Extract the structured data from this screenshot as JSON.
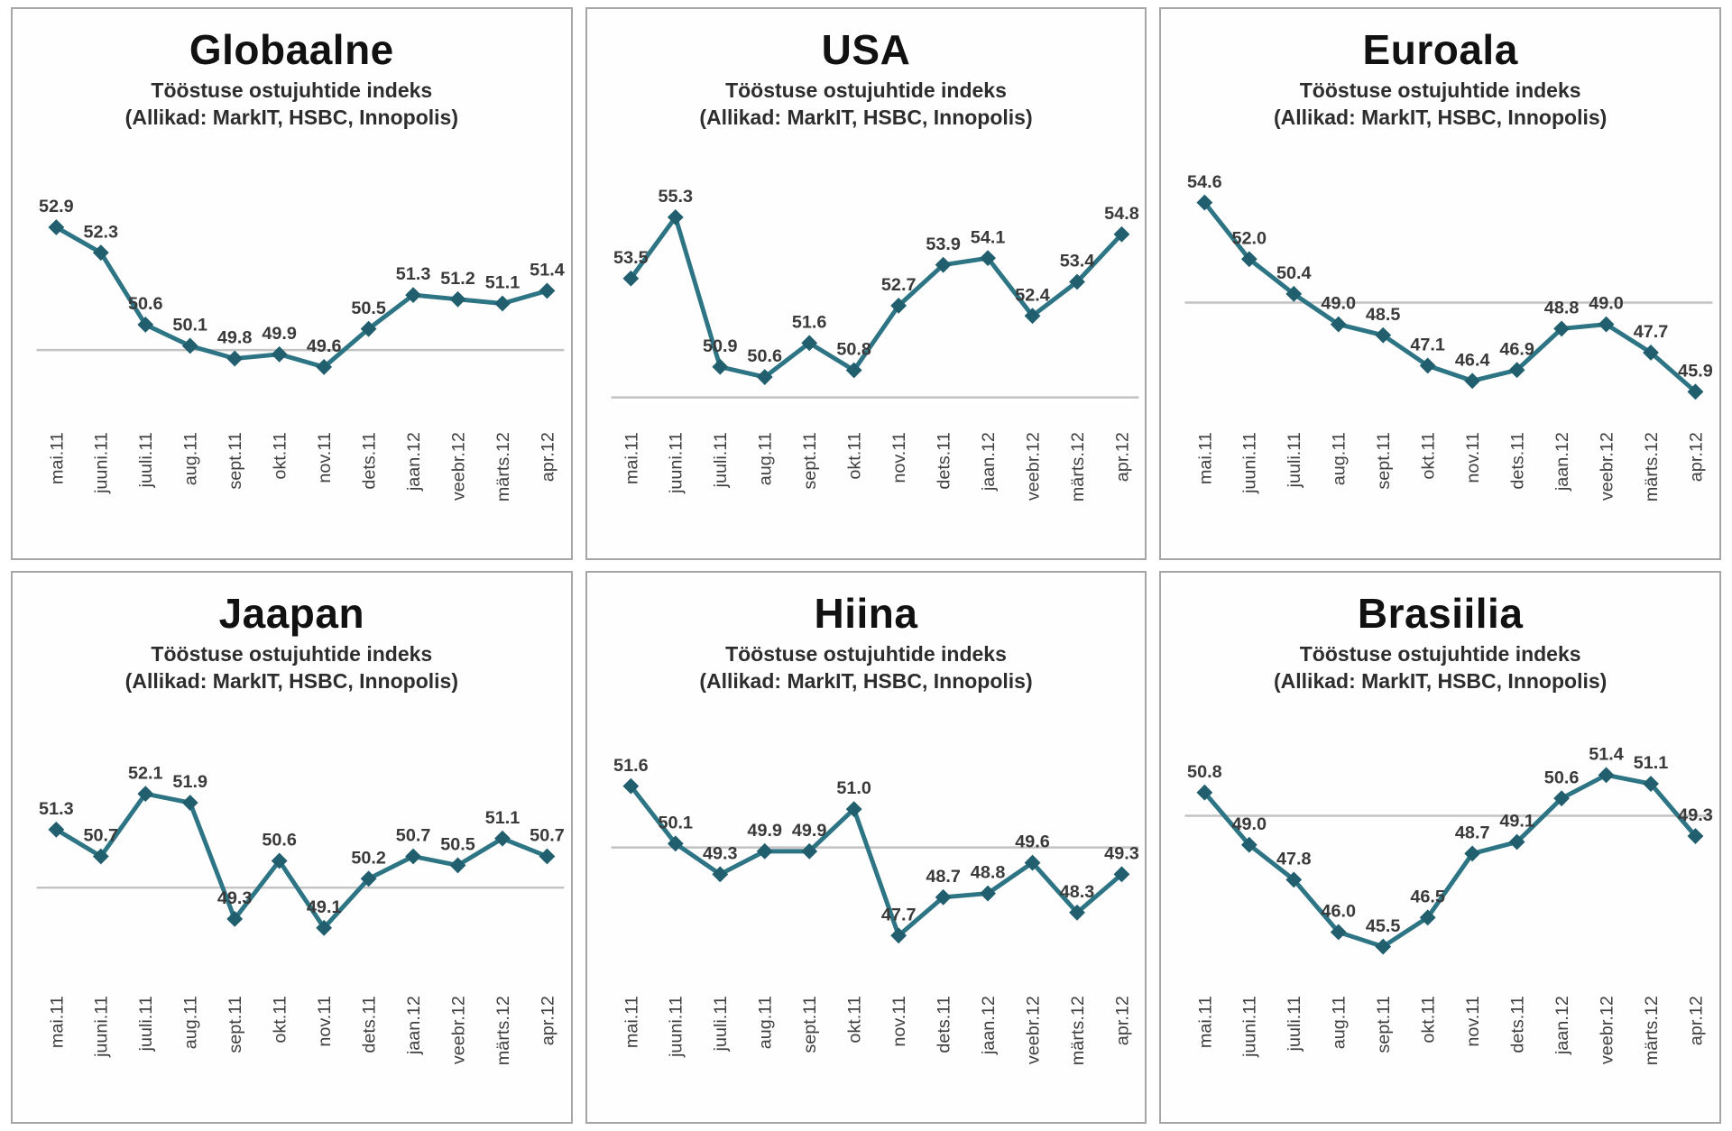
{
  "colors": {
    "line": "#2d7584",
    "marker": "#215f6e",
    "reference_line": "#c3c3c3",
    "value_label": "#3a3a3a",
    "axis_label": "#3f3f3f",
    "panel_border": "#a6a6a6",
    "title": "#111111"
  },
  "chart_data": [
    {
      "type": "line",
      "title": "Globaalne",
      "subtitle": "Tööstuse ostujuhtide indeks",
      "source_note": "(Allikad: MarkIT, HSBC, Innopolis)",
      "categories": [
        "mai.11",
        "juuni.11",
        "juuli.11",
        "aug.11",
        "sept.11",
        "okt.11",
        "nov.11",
        "dets.11",
        "jaan.12",
        "veebr.12",
        "märts.12",
        "apr.12"
      ],
      "values": [
        52.9,
        52.3,
        50.6,
        50.1,
        49.8,
        49.9,
        49.6,
        50.5,
        51.3,
        51.2,
        51.1,
        51.4
      ],
      "ref_line": 50,
      "marker": "diamond",
      "grid": false,
      "legend": "none",
      "data_labels": "above"
    },
    {
      "type": "line",
      "title": "USA",
      "subtitle": "Tööstuse ostujuhtide indeks",
      "source_note": "(Allikad: MarkIT, HSBC, Innopolis)",
      "categories": [
        "mai.11",
        "juuni.11",
        "juuli.11",
        "aug.11",
        "sept.11",
        "okt.11",
        "nov.11",
        "dets.11",
        "jaan.12",
        "veebr.12",
        "märts.12",
        "apr.12"
      ],
      "values": [
        53.5,
        55.3,
        50.9,
        50.6,
        51.6,
        50.8,
        52.7,
        53.9,
        54.1,
        52.4,
        53.4,
        54.8
      ],
      "ref_line": 50,
      "marker": "diamond",
      "grid": false,
      "legend": "none",
      "data_labels": "above"
    },
    {
      "type": "line",
      "title": "Euroala",
      "subtitle": "Tööstuse ostujuhtide indeks",
      "source_note": "(Allikad: MarkIT, HSBC, Innopolis)",
      "categories": [
        "mai.11",
        "juuni.11",
        "juuli.11",
        "aug.11",
        "sept.11",
        "okt.11",
        "nov.11",
        "dets.11",
        "jaan.12",
        "veebr.12",
        "märts.12",
        "apr.12"
      ],
      "values": [
        54.6,
        52.0,
        50.4,
        49.0,
        48.5,
        47.1,
        46.4,
        46.9,
        48.8,
        49.0,
        47.7,
        45.9
      ],
      "ref_line": 50,
      "marker": "diamond",
      "grid": false,
      "legend": "none",
      "data_labels": "above"
    },
    {
      "type": "line",
      "title": "Jaapan",
      "subtitle": "Tööstuse ostujuhtide indeks",
      "source_note": "(Allikad: MarkIT, HSBC, Innopolis)",
      "categories": [
        "mai.11",
        "juuni.11",
        "juuli.11",
        "aug.11",
        "sept.11",
        "okt.11",
        "nov.11",
        "dets.11",
        "jaan.12",
        "veebr.12",
        "märts.12",
        "apr.12"
      ],
      "values": [
        51.3,
        50.7,
        52.1,
        51.9,
        49.3,
        50.6,
        49.1,
        50.2,
        50.7,
        50.5,
        51.1,
        50.7
      ],
      "ref_line": 50,
      "marker": "diamond",
      "grid": false,
      "legend": "none",
      "data_labels": "above"
    },
    {
      "type": "line",
      "title": "Hiina",
      "subtitle": "Tööstuse ostujuhtide indeks",
      "source_note": "(Allikad: MarkIT, HSBC, Innopolis)",
      "categories": [
        "mai.11",
        "juuni.11",
        "juuli.11",
        "aug.11",
        "sept.11",
        "okt.11",
        "nov.11",
        "dets.11",
        "jaan.12",
        "veebr.12",
        "märts.12",
        "apr.12"
      ],
      "values": [
        51.6,
        50.1,
        49.3,
        49.9,
        49.9,
        51.0,
        47.7,
        48.7,
        48.8,
        49.6,
        48.3,
        49.3
      ],
      "ref_line": 50,
      "marker": "diamond",
      "grid": false,
      "legend": "none",
      "data_labels": "above"
    },
    {
      "type": "line",
      "title": "Brasiilia",
      "subtitle": "Tööstuse ostujuhtide indeks",
      "source_note": "(Allikad: MarkIT, HSBC, Innopolis)",
      "categories": [
        "mai.11",
        "juuni.11",
        "juuli.11",
        "aug.11",
        "sept.11",
        "okt.11",
        "nov.11",
        "dets.11",
        "jaan.12",
        "veebr.12",
        "märts.12",
        "apr.12"
      ],
      "values": [
        50.8,
        49.0,
        47.8,
        46.0,
        45.5,
        46.5,
        48.7,
        49.1,
        50.6,
        51.4,
        51.1,
        49.3
      ],
      "ref_line": 50,
      "marker": "diamond",
      "grid": false,
      "legend": "none",
      "data_labels": "above"
    }
  ]
}
